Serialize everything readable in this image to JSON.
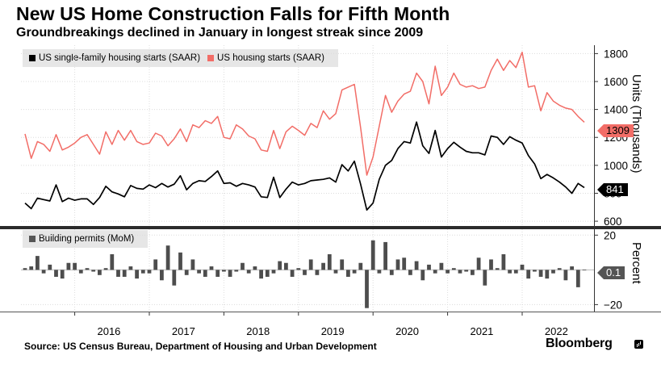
{
  "header": {
    "title": "New US Home Construction Falls for Fifth Month",
    "subtitle": "Groundbreakings declined in January in longest streak since 2009"
  },
  "footer": {
    "source": "Source: US Census Bureau, Department of Housing and Urban Development",
    "brand": "Bloomberg"
  },
  "colors": {
    "single_family": "#000000",
    "total_starts": "#f26d67",
    "permits": "#4d4d4d",
    "legend_bg": "#e6e6e6",
    "grid": "#dcdcdc",
    "frame": "#333333"
  },
  "chart_data": [
    {
      "type": "line",
      "x_start": "2015-05",
      "frequency": "monthly",
      "ylabel": "Units (Thousands)",
      "ylim": [
        560,
        1860
      ],
      "yticks": [
        600,
        800,
        1000,
        1200,
        1400,
        1600,
        1800
      ],
      "grid": true,
      "legend": "top-left",
      "axis_side": "right",
      "series": [
        {
          "name": "US single-family housing starts (SAAR)",
          "color": "#000000",
          "last_label": "841",
          "values": [
            730,
            690,
            765,
            755,
            745,
            860,
            740,
            765,
            750,
            760,
            760,
            720,
            770,
            850,
            810,
            795,
            775,
            855,
            835,
            830,
            860,
            840,
            870,
            845,
            865,
            925,
            825,
            870,
            890,
            885,
            920,
            960,
            870,
            875,
            850,
            870,
            860,
            845,
            775,
            770,
            915,
            770,
            830,
            880,
            860,
            870,
            890,
            895,
            900,
            910,
            880,
            1005,
            960,
            1030,
            865,
            680,
            730,
            900,
            1000,
            1035,
            1120,
            1170,
            1160,
            1310,
            1140,
            1085,
            1250,
            1060,
            1120,
            1165,
            1130,
            1100,
            1090,
            1090,
            1075,
            1210,
            1200,
            1150,
            1205,
            1180,
            1160,
            1070,
            1010,
            905,
            935,
            910,
            880,
            845,
            800,
            870,
            841
          ]
        },
        {
          "name": "US housing starts (SAAR)",
          "color": "#f26d67",
          "last_label": "1309",
          "values": [
            1225,
            1050,
            1170,
            1150,
            1100,
            1220,
            1110,
            1130,
            1160,
            1200,
            1220,
            1150,
            1080,
            1240,
            1150,
            1250,
            1180,
            1250,
            1170,
            1150,
            1160,
            1230,
            1210,
            1140,
            1190,
            1260,
            1170,
            1290,
            1270,
            1320,
            1300,
            1350,
            1200,
            1190,
            1290,
            1260,
            1210,
            1190,
            1110,
            1100,
            1250,
            1120,
            1240,
            1280,
            1250,
            1215,
            1300,
            1270,
            1390,
            1330,
            1370,
            1540,
            1560,
            1580,
            1270,
            930,
            1060,
            1280,
            1500,
            1380,
            1460,
            1510,
            1530,
            1660,
            1600,
            1440,
            1710,
            1500,
            1560,
            1660,
            1580,
            1560,
            1570,
            1550,
            1560,
            1680,
            1760,
            1680,
            1750,
            1700,
            1810,
            1560,
            1570,
            1390,
            1520,
            1460,
            1430,
            1410,
            1400,
            1350,
            1309
          ]
        }
      ]
    },
    {
      "type": "bar",
      "x_start": "2015-05",
      "frequency": "monthly",
      "ylabel": "Percent",
      "ylim": [
        -24,
        22
      ],
      "yticks": [
        -20,
        20
      ],
      "grid": true,
      "legend": "top-left",
      "axis_side": "right",
      "series": [
        {
          "name": "Building permits (MoM)",
          "color": "#4d4d4d",
          "last_label": "0.1",
          "values": [
            1,
            2,
            8,
            -2,
            3,
            -4,
            -5,
            4,
            4,
            -2,
            1,
            -1,
            -3,
            1,
            9,
            -4,
            -4,
            2,
            -5,
            -2,
            -2,
            6,
            -6,
            14,
            -9,
            10,
            -3,
            6,
            -2,
            -4,
            2,
            -4,
            -1,
            -4,
            -1,
            4,
            -2,
            2,
            -5,
            -4,
            -2,
            5,
            4,
            -4,
            1,
            -3,
            6,
            -3,
            4,
            9,
            -2,
            6,
            -4,
            -2,
            4,
            -22,
            17,
            -2,
            16,
            -3,
            6,
            7,
            -3,
            5,
            -6,
            3,
            -2,
            4,
            -2,
            1,
            -2,
            -1,
            -3,
            7,
            -9,
            6,
            1,
            9,
            -2,
            -2,
            3,
            -5,
            -1,
            -4,
            -5,
            -2,
            1,
            -6,
            2,
            -10,
            0.1
          ]
        }
      ]
    }
  ],
  "x_axis": {
    "tick_labels": [
      "2016",
      "2017",
      "2018",
      "2019",
      "2020",
      "2021",
      "2022"
    ]
  }
}
